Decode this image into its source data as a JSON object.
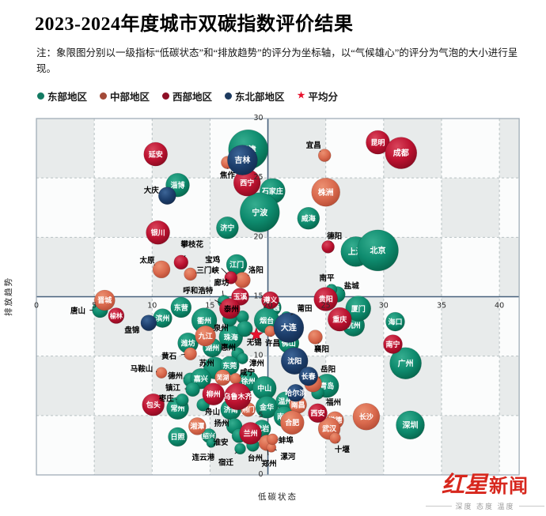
{
  "header": {
    "title": "2023-2024年度城市双碳指数评价结果",
    "note": "注：象限图分别以一级指标“低碳状态”和“排放趋势”的评分为坐标轴，以“气候雄心”的评分为气泡的大小进行呈现。"
  },
  "legend": {
    "items": [
      {
        "label": "东部地区",
        "region": "east",
        "color": "#127a62",
        "marker": "dot"
      },
      {
        "label": "中部地区",
        "region": "central",
        "color": "#a34a38",
        "marker": "dot"
      },
      {
        "label": "西部地区",
        "region": "west",
        "color": "#8e0f26",
        "marker": "dot"
      },
      {
        "label": "东北部地区",
        "region": "northeast",
        "color": "#1d3a5f",
        "marker": "dot"
      },
      {
        "label": "平均分",
        "region": "average",
        "color": "#e8112d",
        "marker": "star"
      }
    ]
  },
  "chart_data": {
    "type": "scatter",
    "title": "2023-2024年度城市双碳指数评价结果",
    "xlabel": "低碳状态",
    "ylabel": "排放趋势",
    "xlim": [
      0,
      40
    ],
    "ylim": [
      0,
      30
    ],
    "x_ticks": [
      0,
      5,
      10,
      15,
      20,
      25,
      30,
      35,
      40
    ],
    "y_ticks": [
      0,
      5,
      10,
      15,
      20,
      25,
      30
    ],
    "quadrant_center": {
      "x": 20,
      "y": 15
    },
    "grid": "dashed every 5 units, checkerboard background",
    "size_meaning": "气候雄心评分（气泡大小）",
    "average": {
      "label": "平均分",
      "x": 19.0,
      "y": 11.8
    },
    "regions": {
      "east": {
        "label": "东部地区",
        "stops": [
          "#35ad8f",
          "#0e8b6e",
          "#056249"
        ]
      },
      "central": {
        "label": "中部地区",
        "stops": [
          "#eb9071",
          "#da6a4e",
          "#b44a33"
        ]
      },
      "west": {
        "label": "西部地区",
        "stops": [
          "#d9455c",
          "#bc1230",
          "#840a1f"
        ]
      },
      "northeast": {
        "label": "东北部地区",
        "stops": [
          "#3c6597",
          "#1d3f6d",
          "#122a4c"
        ]
      }
    },
    "cities": [
      {
        "name": "天津",
        "region": "east",
        "x": 18.3,
        "y": 27.4,
        "r": 25
      },
      {
        "name": "石家庄",
        "region": "east",
        "x": 20.4,
        "y": 23.9,
        "r": 16
      },
      {
        "name": "淄博",
        "region": "east",
        "x": 12.2,
        "y": 24.4,
        "r": 15
      },
      {
        "name": "宁波",
        "region": "east",
        "x": 19.3,
        "y": 22.1,
        "r": 25
      },
      {
        "name": "济宁",
        "region": "east",
        "x": 16.5,
        "y": 20.8,
        "r": 14
      },
      {
        "name": "江门",
        "region": "east",
        "x": 17.3,
        "y": 17.7,
        "r": 13
      },
      {
        "name": "威海",
        "region": "east",
        "x": 23.5,
        "y": 21.6,
        "r": 14
      },
      {
        "name": "上海",
        "region": "east",
        "x": 27.6,
        "y": 18.8,
        "r": 19
      },
      {
        "name": "北京",
        "region": "east",
        "x": 29.5,
        "y": 18.9,
        "r": 26
      },
      {
        "name": "唐山",
        "region": "east",
        "x": 5.5,
        "y": 13.9,
        "r": 10,
        "label_offset": [
          -28,
          1
        ]
      },
      {
        "name": "滨州",
        "region": "east",
        "x": 10.9,
        "y": 13.2,
        "r": 12
      },
      {
        "name": "东营",
        "region": "east",
        "x": 12.5,
        "y": 14.1,
        "r": 13
      },
      {
        "name": "衢州",
        "region": "east",
        "x": 14.5,
        "y": 13.0,
        "r": 16
      },
      {
        "name": "珠海",
        "region": "east",
        "x": 16.8,
        "y": 11.6,
        "r": 15
      },
      {
        "name": "泰州",
        "region": "east",
        "x": 17.8,
        "y": 13.3,
        "r": 8,
        "label_offset": [
          -14,
          -10
        ]
      },
      {
        "name": "泉州",
        "region": "east",
        "x": 16.7,
        "y": 13.1,
        "r": 9,
        "label_offset": [
          -11,
          11
        ]
      },
      {
        "name": "南通",
        "region": "east",
        "x": 20.4,
        "y": 14.1,
        "r": 11
      },
      {
        "name": "烟台",
        "region": "east",
        "x": 19.9,
        "y": 13.0,
        "r": 16
      },
      {
        "name": "无锡",
        "region": "east",
        "x": 18.0,
        "y": 12.3,
        "r": 10,
        "label_offset": [
          12,
          17
        ]
      },
      {
        "name": "廊坊",
        "region": "east",
        "x": 16.2,
        "y": 14.6,
        "r": 8,
        "label_offset": [
          -3,
          -24
        ]
      },
      {
        "name": "盐城",
        "region": "east",
        "x": 26.0,
        "y": 15.2,
        "r": 10,
        "label_offset": [
          18,
          -11
        ]
      },
      {
        "name": "南平",
        "region": "east",
        "x": 25.5,
        "y": 15.6,
        "r": 7,
        "label_offset": [
          -6,
          -15
        ]
      },
      {
        "name": "莆田",
        "region": "east",
        "x": 21.6,
        "y": 13.3,
        "r": 7,
        "label_offset": [
          23,
          -11
        ]
      },
      {
        "name": "杭州",
        "region": "east",
        "x": 27.4,
        "y": 12.6,
        "r": 14
      },
      {
        "name": "厦门",
        "region": "east",
        "x": 27.8,
        "y": 14.0,
        "r": 16
      },
      {
        "name": "海口",
        "region": "east",
        "x": 31.0,
        "y": 12.9,
        "r": 12
      },
      {
        "name": "佛山",
        "region": "east",
        "x": 21.8,
        "y": 11.1,
        "r": 13
      },
      {
        "name": "广州",
        "region": "east",
        "x": 31.9,
        "y": 9.4,
        "r": 20
      },
      {
        "name": "深圳",
        "region": "east",
        "x": 32.3,
        "y": 4.2,
        "r": 18
      },
      {
        "name": "潍坊",
        "region": "east",
        "x": 13.1,
        "y": 11.1,
        "r": 13
      },
      {
        "name": "湖州",
        "region": "east",
        "x": 15.2,
        "y": 10.7,
        "r": 12
      },
      {
        "name": "惠州",
        "region": "east",
        "x": 17.4,
        "y": 10.2,
        "r": 8,
        "label_offset": [
          -12,
          -8
        ]
      },
      {
        "name": "漳州",
        "region": "east",
        "x": 17.8,
        "y": 9.8,
        "r": 7,
        "label_offset": [
          18,
          6
        ]
      },
      {
        "name": "苏州",
        "region": "east",
        "x": 15.4,
        "y": 9.0,
        "r": 14,
        "label_offset": [
          -10,
          -6
        ]
      },
      {
        "name": "东莞",
        "region": "east",
        "x": 16.7,
        "y": 9.2,
        "r": 12
      },
      {
        "name": "徐州",
        "region": "east",
        "x": 18.3,
        "y": 7.9,
        "r": 13
      },
      {
        "name": "中山",
        "region": "east",
        "x": 19.7,
        "y": 7.3,
        "r": 15
      },
      {
        "name": "济南",
        "region": "east",
        "x": 16.8,
        "y": 5.5,
        "r": 13
      },
      {
        "name": "金华",
        "region": "east",
        "x": 19.9,
        "y": 5.7,
        "r": 14
      },
      {
        "name": "舟山",
        "region": "east",
        "x": 14.4,
        "y": 5.9,
        "r": 8,
        "label_offset": [
          12,
          9
        ]
      },
      {
        "name": "常州",
        "region": "east",
        "x": 12.2,
        "y": 5.6,
        "r": 14
      },
      {
        "name": "枣庄",
        "region": "east",
        "x": 12.6,
        "y": 6.3,
        "r": 8,
        "label_offset": [
          -20,
          -2
        ]
      },
      {
        "name": "德州",
        "region": "east",
        "x": 13.3,
        "y": 8.0,
        "r": 9,
        "label_offset": [
          -19,
          -5
        ]
      },
      {
        "name": "嘉兴",
        "region": "east",
        "x": 14.2,
        "y": 8.1,
        "r": 13
      },
      {
        "name": "镇江",
        "region": "east",
        "x": 13.5,
        "y": 7.2,
        "r": 9,
        "label_offset": [
          -25,
          -2
        ]
      },
      {
        "name": "日照",
        "region": "east",
        "x": 12.2,
        "y": 3.2,
        "r": 12
      },
      {
        "name": "绍兴",
        "region": "east",
        "x": 14.9,
        "y": 3.3,
        "r": 9
      },
      {
        "name": "扬州",
        "region": "east",
        "x": 17.1,
        "y": 4.1,
        "r": 10,
        "label_offset": [
          -16,
          -4
        ]
      },
      {
        "name": "淮安",
        "region": "east",
        "x": 17.5,
        "y": 3.3,
        "r": 9,
        "label_offset": [
          -23,
          8
        ]
      },
      {
        "name": "连云港",
        "region": "east",
        "x": 15.1,
        "y": 2.7,
        "r": 6,
        "label_offset": [
          -10,
          18
        ]
      },
      {
        "name": "宿迁",
        "region": "east",
        "x": 17.6,
        "y": 2.2,
        "r": 7,
        "label_offset": [
          -18,
          17
        ]
      },
      {
        "name": "台州",
        "region": "east",
        "x": 18.7,
        "y": 2.5,
        "r": 8,
        "label_offset": [
          3,
          16
        ]
      },
      {
        "name": "温州",
        "region": "east",
        "x": 21.5,
        "y": 6.2,
        "r": 12
      },
      {
        "name": "南京",
        "region": "east",
        "x": 21.4,
        "y": 4.9,
        "r": 13
      },
      {
        "name": "青岛",
        "region": "east",
        "x": 25.1,
        "y": 7.5,
        "r": 15
      },
      {
        "name": "福州",
        "region": "east",
        "x": 24.3,
        "y": 6.9,
        "r": 8,
        "label_offset": [
          20,
          12
        ]
      },
      {
        "name": "龙岩",
        "region": "east",
        "x": 19.5,
        "y": 3.9,
        "r": 11
      },
      {
        "name": "焦作",
        "region": "central",
        "x": 16.5,
        "y": 26.3,
        "r": 8,
        "label_offset": [
          0,
          16
        ]
      },
      {
        "name": "宜昌",
        "region": "central",
        "x": 24.9,
        "y": 26.9,
        "r": 8,
        "label_offset": [
          -14,
          -13
        ]
      },
      {
        "name": "株洲",
        "region": "central",
        "x": 25.0,
        "y": 23.8,
        "r": 18
      },
      {
        "name": "太原",
        "region": "central",
        "x": 10.8,
        "y": 17.3,
        "r": 11,
        "label_offset": [
          -18,
          -12
        ]
      },
      {
        "name": "三门峡",
        "region": "central",
        "x": 13.3,
        "y": 16.9,
        "r": 8,
        "label_offset": [
          22,
          -5
        ]
      },
      {
        "name": "洛阳",
        "region": "central",
        "x": 17.8,
        "y": 16.4,
        "r": 10,
        "label_offset": [
          17,
          -13
        ]
      },
      {
        "name": "晋城",
        "region": "central",
        "x": 5.9,
        "y": 14.7,
        "r": 13
      },
      {
        "name": "九江",
        "region": "central",
        "x": 14.6,
        "y": 11.7,
        "r": 13
      },
      {
        "name": "黄石",
        "region": "central",
        "x": 13.3,
        "y": 10.2,
        "r": 8,
        "label_offset": [
          -27,
          3
        ]
      },
      {
        "name": "马鞍山",
        "region": "central",
        "x": 10.8,
        "y": 8.6,
        "r": 7,
        "label_offset": [
          -25,
          -5
        ]
      },
      {
        "name": "芜湖",
        "region": "central",
        "x": 16.1,
        "y": 8.2,
        "r": 10
      },
      {
        "name": "咸宁",
        "region": "central",
        "x": 17.2,
        "y": 8.1,
        "r": 7,
        "label_offset": [
          15,
          -8
        ]
      },
      {
        "name": "湘潭",
        "region": "central",
        "x": 13.9,
        "y": 4.1,
        "r": 11
      },
      {
        "name": "岳阳",
        "region": "central",
        "x": 23.9,
        "y": 7.7,
        "r": 11,
        "label_offset": [
          19,
          -18
        ]
      },
      {
        "name": "南昌",
        "region": "central",
        "x": 22.6,
        "y": 5.9,
        "r": 11
      },
      {
        "name": "常德",
        "region": "central",
        "x": 25.8,
        "y": 4.6,
        "r": 11
      },
      {
        "name": "合肥",
        "region": "central",
        "x": 22.1,
        "y": 4.4,
        "r": 15
      },
      {
        "name": "武汉",
        "region": "central",
        "x": 25.3,
        "y": 3.9,
        "r": 14
      },
      {
        "name": "十堰",
        "region": "central",
        "x": 25.8,
        "y": 3.1,
        "r": 7,
        "label_offset": [
          9,
          14
        ]
      },
      {
        "name": "长沙",
        "region": "central",
        "x": 28.5,
        "y": 4.9,
        "r": 17
      },
      {
        "name": "郑州",
        "region": "central",
        "x": 19.9,
        "y": 2.7,
        "r": 10,
        "label_offset": [
          3,
          26
        ]
      },
      {
        "name": "漯河",
        "region": "central",
        "x": 20.3,
        "y": 2.3,
        "r": 6,
        "label_offset": [
          21,
          11
        ]
      },
      {
        "name": "蚌埠",
        "region": "central",
        "x": 20.4,
        "y": 3.0,
        "r": 7,
        "label_offset": [
          17,
          1
        ]
      },
      {
        "name": "襄阳",
        "region": "central",
        "x": 24.1,
        "y": 11.6,
        "r": 9,
        "label_offset": [
          8,
          15
        ]
      },
      {
        "name": "荆门",
        "region": "central",
        "x": 18.3,
        "y": 5.5,
        "r": 9
      },
      {
        "name": "许昌",
        "region": "central",
        "x": 20.2,
        "y": 12.1,
        "r": 7,
        "label_offset": [
          3,
          15
        ]
      },
      {
        "name": "延安",
        "region": "west",
        "x": 10.3,
        "y": 27.0,
        "r": 15
      },
      {
        "name": "西宁",
        "region": "west",
        "x": 18.2,
        "y": 24.6,
        "r": 17
      },
      {
        "name": "银川",
        "region": "west",
        "x": 10.5,
        "y": 20.4,
        "r": 15
      },
      {
        "name": "攀枝花",
        "region": "west",
        "x": 12.5,
        "y": 17.9,
        "r": 9,
        "label_offset": [
          14,
          -23
        ]
      },
      {
        "name": "宝鸡",
        "region": "west",
        "x": 16.8,
        "y": 16.6,
        "r": 8,
        "label_offset": [
          -23,
          -23
        ]
      },
      {
        "name": "昆明",
        "region": "west",
        "x": 29.5,
        "y": 28.0,
        "r": 15
      },
      {
        "name": "成都",
        "region": "west",
        "x": 31.5,
        "y": 27.1,
        "r": 20
      },
      {
        "name": "德阳",
        "region": "west",
        "x": 25.2,
        "y": 19.2,
        "r": 8,
        "label_offset": [
          8,
          -14
        ]
      },
      {
        "name": "玉溪",
        "region": "west",
        "x": 17.6,
        "y": 15.0,
        "r": 11
      },
      {
        "name": "呼和浩特",
        "region": "west",
        "x": 16.7,
        "y": 14.0,
        "r": 13,
        "label_offset": [
          -40,
          -23
        ]
      },
      {
        "name": "遵义",
        "region": "west",
        "x": 20.2,
        "y": 14.7,
        "r": 11
      },
      {
        "name": "榆林",
        "region": "west",
        "x": 6.9,
        "y": 13.4,
        "r": 10
      },
      {
        "name": "贵阳",
        "region": "west",
        "x": 25.0,
        "y": 14.8,
        "r": 15
      },
      {
        "name": "重庆",
        "region": "west",
        "x": 26.2,
        "y": 13.1,
        "r": 15
      },
      {
        "name": "南宁",
        "region": "west",
        "x": 30.8,
        "y": 11.0,
        "r": 12
      },
      {
        "name": "柳州",
        "region": "west",
        "x": 15.3,
        "y": 6.8,
        "r": 14
      },
      {
        "name": "乌鲁木齐",
        "region": "west",
        "x": 17.4,
        "y": 6.6,
        "r": 17
      },
      {
        "name": "包头",
        "region": "west",
        "x": 10.1,
        "y": 5.9,
        "r": 14
      },
      {
        "name": "兰州",
        "region": "west",
        "x": 18.5,
        "y": 3.5,
        "r": 14
      },
      {
        "name": "西安",
        "region": "west",
        "x": 24.3,
        "y": 5.2,
        "r": 12
      },
      {
        "name": "吉林",
        "region": "northeast",
        "x": 17.8,
        "y": 26.5,
        "r": 19
      },
      {
        "name": "大庆",
        "region": "northeast",
        "x": 11.3,
        "y": 23.5,
        "r": 11,
        "label_offset": [
          -20,
          -7
        ]
      },
      {
        "name": "盘锦",
        "region": "northeast",
        "x": 9.7,
        "y": 12.8,
        "r": 10,
        "label_offset": [
          -21,
          9
        ]
      },
      {
        "name": "大连",
        "region": "northeast",
        "x": 21.8,
        "y": 12.4,
        "r": 19
      },
      {
        "name": "沈阳",
        "region": "northeast",
        "x": 22.3,
        "y": 9.6,
        "r": 17
      },
      {
        "name": "长春",
        "region": "northeast",
        "x": 23.5,
        "y": 8.3,
        "r": 12
      },
      {
        "name": "哈尔滨",
        "region": "northeast",
        "x": 22.4,
        "y": 6.9,
        "r": 11
      }
    ]
  },
  "footer": {
    "brand_part1": "红星",
    "brand_part2": "新闻",
    "tagline": "深度 态度 温度"
  }
}
